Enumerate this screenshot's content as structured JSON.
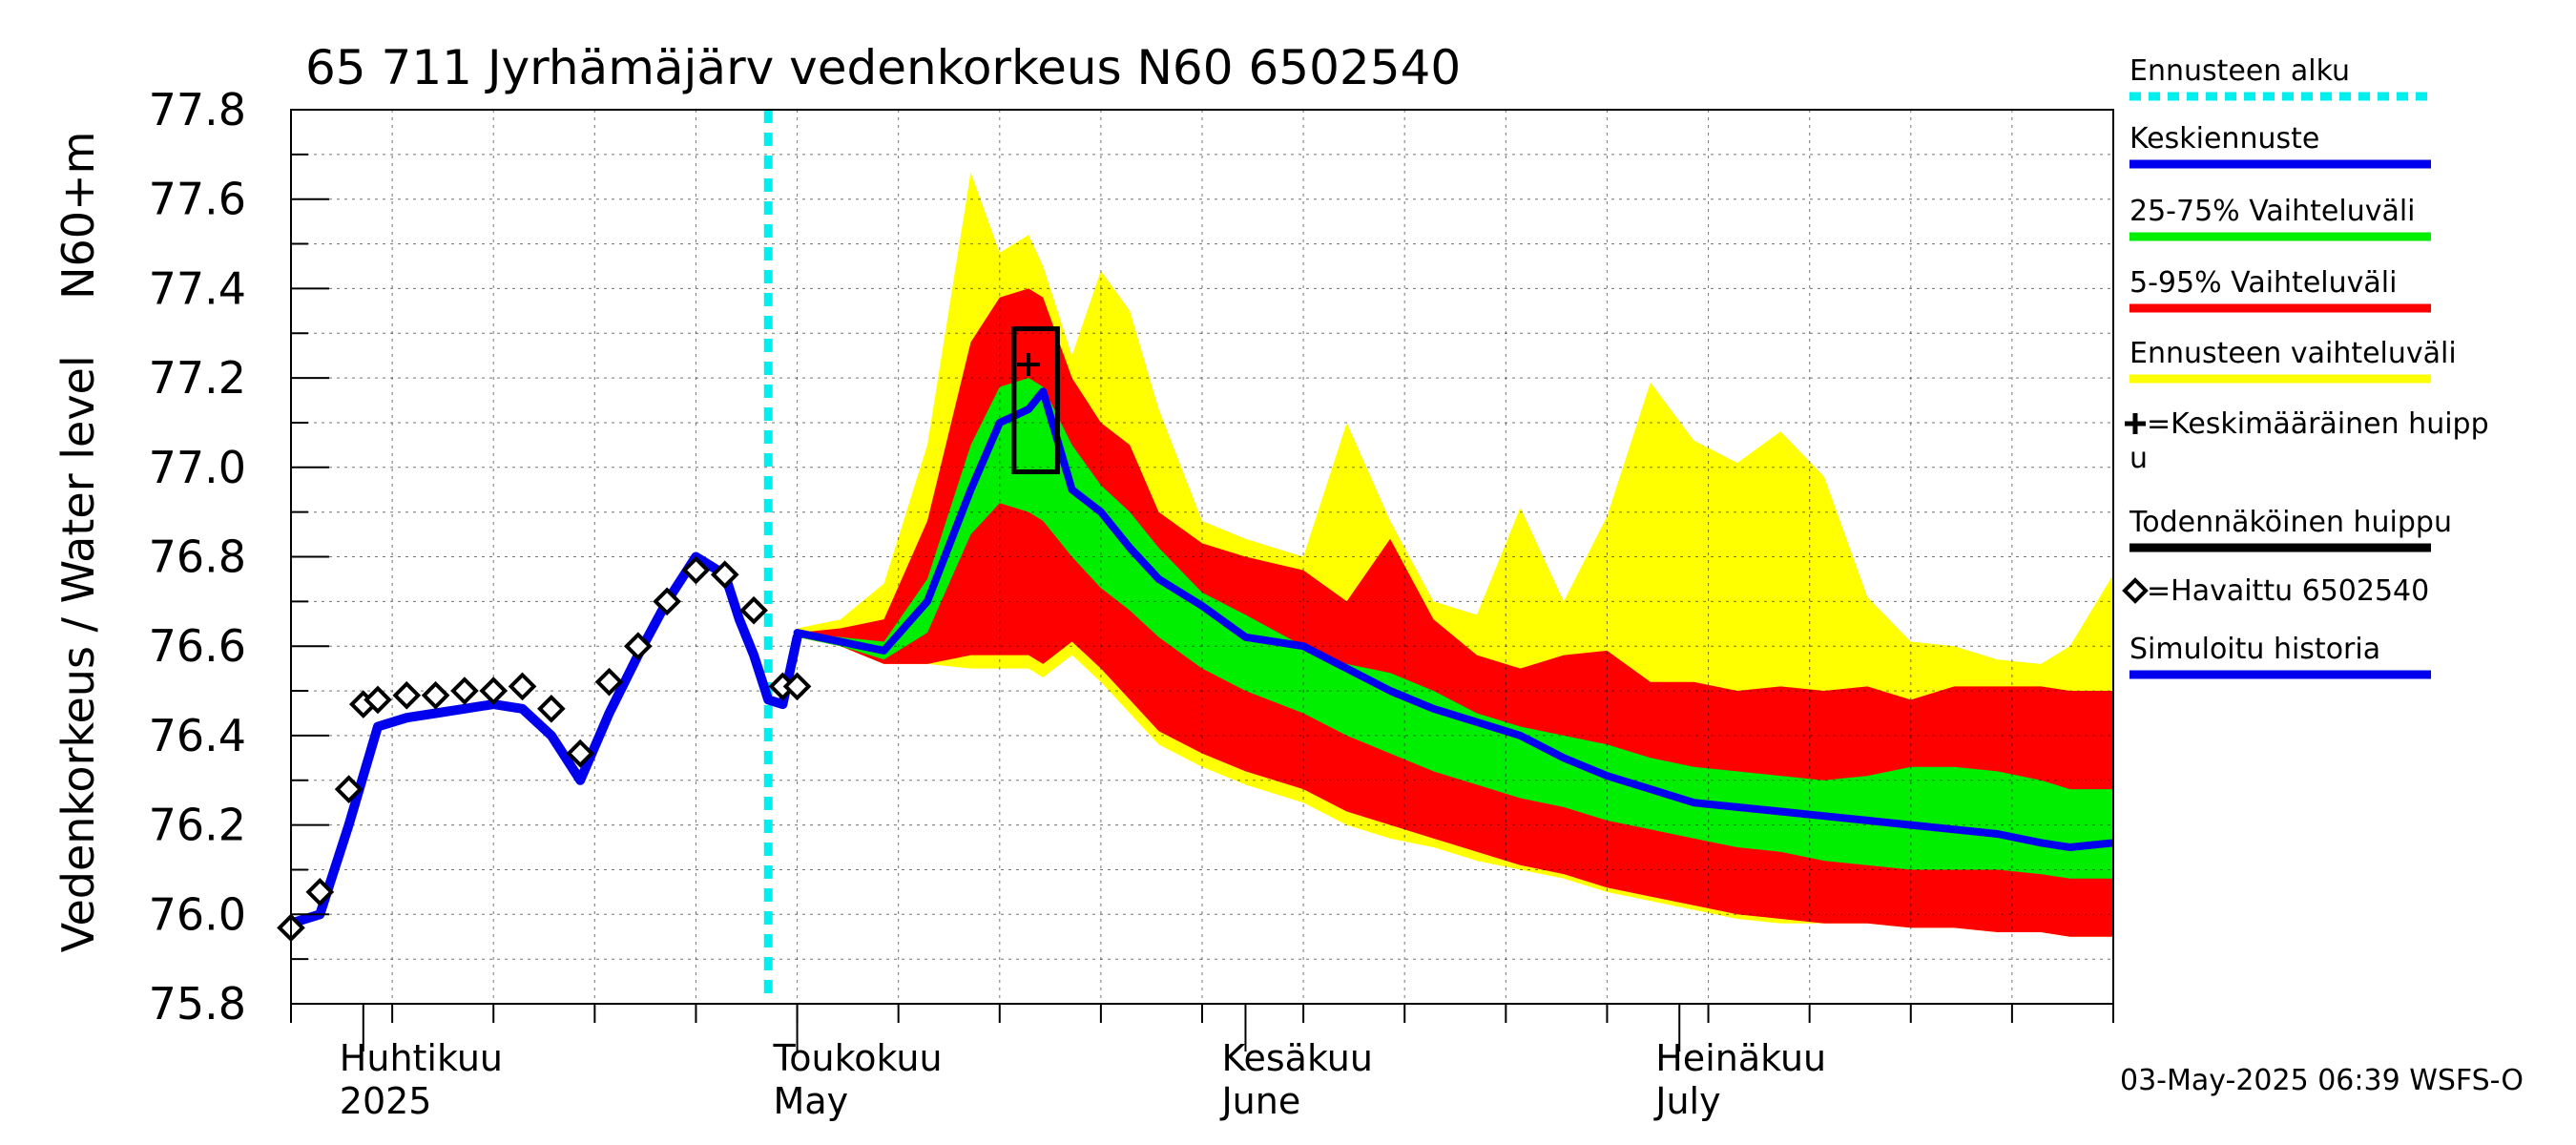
{
  "chart_data": {
    "type": "area",
    "title": "65 711 Jyrhämäjärv vedenkorkeus N60 6502540",
    "ylabel": "Vedenkorkeus / Water level    N60+m",
    "ylim": [
      75.8,
      77.8
    ],
    "yticks": [
      "75.8",
      "76.0",
      "76.2",
      "76.4",
      "76.6",
      "76.8",
      "77.0",
      "77.2",
      "77.4",
      "77.6",
      "77.8"
    ],
    "xlim": [
      "2025-03-27",
      "2025-07-31"
    ],
    "grid": true,
    "x_labels": [
      {
        "date": "2025-04-01",
        "fi": "Huhtikuu",
        "en": "2025"
      },
      {
        "date": "2025-05-01",
        "fi": "Toukokuu",
        "en": "May"
      },
      {
        "date": "2025-06-01",
        "fi": "Kesäkuu",
        "en": "June"
      },
      {
        "date": "2025-07-01",
        "fi": "Heinäkuu",
        "en": "July"
      }
    ],
    "forecast_start": "2025-04-29",
    "band_dates": [
      "2025-05-01",
      "2025-05-04",
      "2025-05-07",
      "2025-05-10",
      "2025-05-13",
      "2025-05-15",
      "2025-05-17",
      "2025-05-18",
      "2025-05-20",
      "2025-05-22",
      "2025-05-24",
      "2025-05-26",
      "2025-05-29",
      "2025-06-01",
      "2025-06-05",
      "2025-06-08",
      "2025-06-11",
      "2025-06-14",
      "2025-06-17",
      "2025-06-20",
      "2025-06-23",
      "2025-06-26",
      "2025-06-29",
      "2025-07-02",
      "2025-07-05",
      "2025-07-08",
      "2025-07-11",
      "2025-07-14",
      "2025-07-17",
      "2025-07-20",
      "2025-07-23",
      "2025-07-26",
      "2025-07-28",
      "2025-07-31"
    ],
    "series": [
      {
        "name": "Ennusteen vaihteluväli",
        "color": "#ffff00",
        "upper": [
          76.64,
          76.66,
          76.74,
          77.05,
          77.66,
          77.48,
          77.52,
          77.45,
          77.25,
          77.44,
          77.35,
          77.13,
          76.88,
          76.84,
          76.8,
          77.1,
          76.88,
          76.7,
          76.67,
          76.91,
          76.7,
          76.89,
          77.19,
          77.06,
          77.01,
          77.08,
          76.98,
          76.71,
          76.61,
          76.6,
          76.57,
          76.56,
          76.6,
          76.76
        ],
        "lower": [
          76.62,
          76.6,
          76.56,
          76.56,
          76.55,
          76.55,
          76.55,
          76.53,
          76.58,
          76.52,
          76.45,
          76.38,
          76.33,
          76.29,
          76.25,
          76.2,
          76.17,
          76.15,
          76.12,
          76.1,
          76.08,
          76.05,
          76.03,
          76.01,
          75.99,
          75.98,
          75.98,
          75.98,
          75.97,
          75.97,
          75.96,
          75.96,
          75.95,
          75.95
        ]
      },
      {
        "name": "5-95% Vaihteluväli",
        "color": "#ff0000",
        "upper": [
          76.63,
          76.64,
          76.66,
          76.88,
          77.28,
          77.38,
          77.4,
          77.38,
          77.2,
          77.1,
          77.05,
          76.9,
          76.83,
          76.8,
          76.77,
          76.7,
          76.84,
          76.66,
          76.58,
          76.55,
          76.58,
          76.59,
          76.52,
          76.52,
          76.5,
          76.51,
          76.5,
          76.51,
          76.48,
          76.51,
          76.51,
          76.51,
          76.5,
          76.5
        ]
      },
      {
        "name": "25-75% Vaihteluväli",
        "color": "#00ee00",
        "upper": [
          76.63,
          76.62,
          76.61,
          76.75,
          77.05,
          77.18,
          77.2,
          77.18,
          77.05,
          76.96,
          76.9,
          76.82,
          76.72,
          76.67,
          76.6,
          76.56,
          76.54,
          76.5,
          76.45,
          76.42,
          76.4,
          76.38,
          76.35,
          76.33,
          76.32,
          76.31,
          76.3,
          76.31,
          76.33,
          76.33,
          76.32,
          76.3,
          76.28,
          76.28
        ],
        "lower": [
          76.62,
          76.6,
          76.57,
          76.63,
          76.85,
          76.92,
          76.9,
          76.88,
          76.8,
          76.73,
          76.68,
          76.62,
          76.55,
          76.5,
          76.45,
          76.4,
          76.36,
          76.32,
          76.29,
          76.26,
          76.24,
          76.21,
          76.19,
          76.17,
          76.15,
          76.14,
          76.12,
          76.11,
          76.1,
          76.1,
          76.1,
          76.09,
          76.08,
          76.08
        ]
      },
      {
        "name": "Keskiennuste",
        "color": "#0000ee",
        "values": [
          76.63,
          76.61,
          76.59,
          76.7,
          76.95,
          77.1,
          77.13,
          77.17,
          76.95,
          76.9,
          76.82,
          76.75,
          76.69,
          76.62,
          76.6,
          76.55,
          76.5,
          76.46,
          76.43,
          76.4,
          76.35,
          76.31,
          76.28,
          76.25,
          76.24,
          76.23,
          76.22,
          76.21,
          76.2,
          76.19,
          76.18,
          76.16,
          76.15,
          76.16
        ]
      },
      {
        "name": "Simuloitu historia",
        "color": "#0000ee",
        "dates": [
          "2025-03-27",
          "2025-03-29",
          "2025-03-31",
          "2025-04-02",
          "2025-04-04",
          "2025-04-06",
          "2025-04-08",
          "2025-04-10",
          "2025-04-12",
          "2025-04-14",
          "2025-04-16",
          "2025-04-18",
          "2025-04-20",
          "2025-04-22",
          "2025-04-24",
          "2025-04-26",
          "2025-04-27",
          "2025-04-28",
          "2025-04-29",
          "2025-04-30",
          "2025-05-01"
        ],
        "values": [
          75.98,
          76.0,
          76.2,
          76.42,
          76.44,
          76.45,
          76.46,
          76.47,
          76.46,
          76.4,
          76.3,
          76.45,
          76.58,
          76.7,
          76.8,
          76.76,
          76.66,
          76.58,
          76.48,
          76.47,
          76.62
        ]
      },
      {
        "name": "=Havaittu 6502540",
        "marker": "diamond",
        "color": "#000000",
        "dates": [
          "2025-03-27",
          "2025-03-29",
          "2025-03-31",
          "2025-04-01",
          "2025-04-02",
          "2025-04-04",
          "2025-04-06",
          "2025-04-08",
          "2025-04-10",
          "2025-04-12",
          "2025-04-14",
          "2025-04-16",
          "2025-04-18",
          "2025-04-20",
          "2025-04-22",
          "2025-04-24",
          "2025-04-26",
          "2025-04-28",
          "2025-04-30",
          "2025-05-01"
        ],
        "values": [
          75.97,
          76.05,
          76.28,
          76.47,
          76.48,
          76.49,
          76.49,
          76.5,
          76.5,
          76.51,
          76.46,
          76.36,
          76.52,
          76.6,
          76.7,
          76.77,
          76.76,
          76.68,
          76.51,
          76.51
        ]
      }
    ],
    "mean_peak": {
      "date": "2025-05-17",
      "value": 77.23
    },
    "probable_peak_box": {
      "date_from": "2025-05-16",
      "date_to": "2025-05-19",
      "low": 76.99,
      "high": 77.31
    },
    "legend": {
      "placement": "right",
      "items": [
        {
          "label": "Ennusteen alku",
          "color": "#00eeee",
          "style": "dotted"
        },
        {
          "label": "Keskiennuste",
          "color": "#0000ee",
          "style": "line"
        },
        {
          "label": "25-75% Vaihteluväli",
          "color": "#00ee00",
          "style": "line"
        },
        {
          "label": "5-95% Vaihteluväli",
          "color": "#ff0000",
          "style": "line"
        },
        {
          "label": "Ennusteen vaihteluväli",
          "color": "#ffff00",
          "style": "line"
        },
        {
          "label": "=Keskimääräinen huipp",
          "label2": "u",
          "color": "#000000",
          "style": "plus"
        },
        {
          "label": "Todennäköinen huippu",
          "color": "#000000",
          "style": "line"
        },
        {
          "label": "=Havaittu 6502540",
          "color": "#000000",
          "style": "diamond"
        },
        {
          "label": "Simuloitu historia",
          "color": "#0000ee",
          "style": "line"
        }
      ]
    },
    "footer": "03-May-2025 06:39 WSFS-O"
  }
}
